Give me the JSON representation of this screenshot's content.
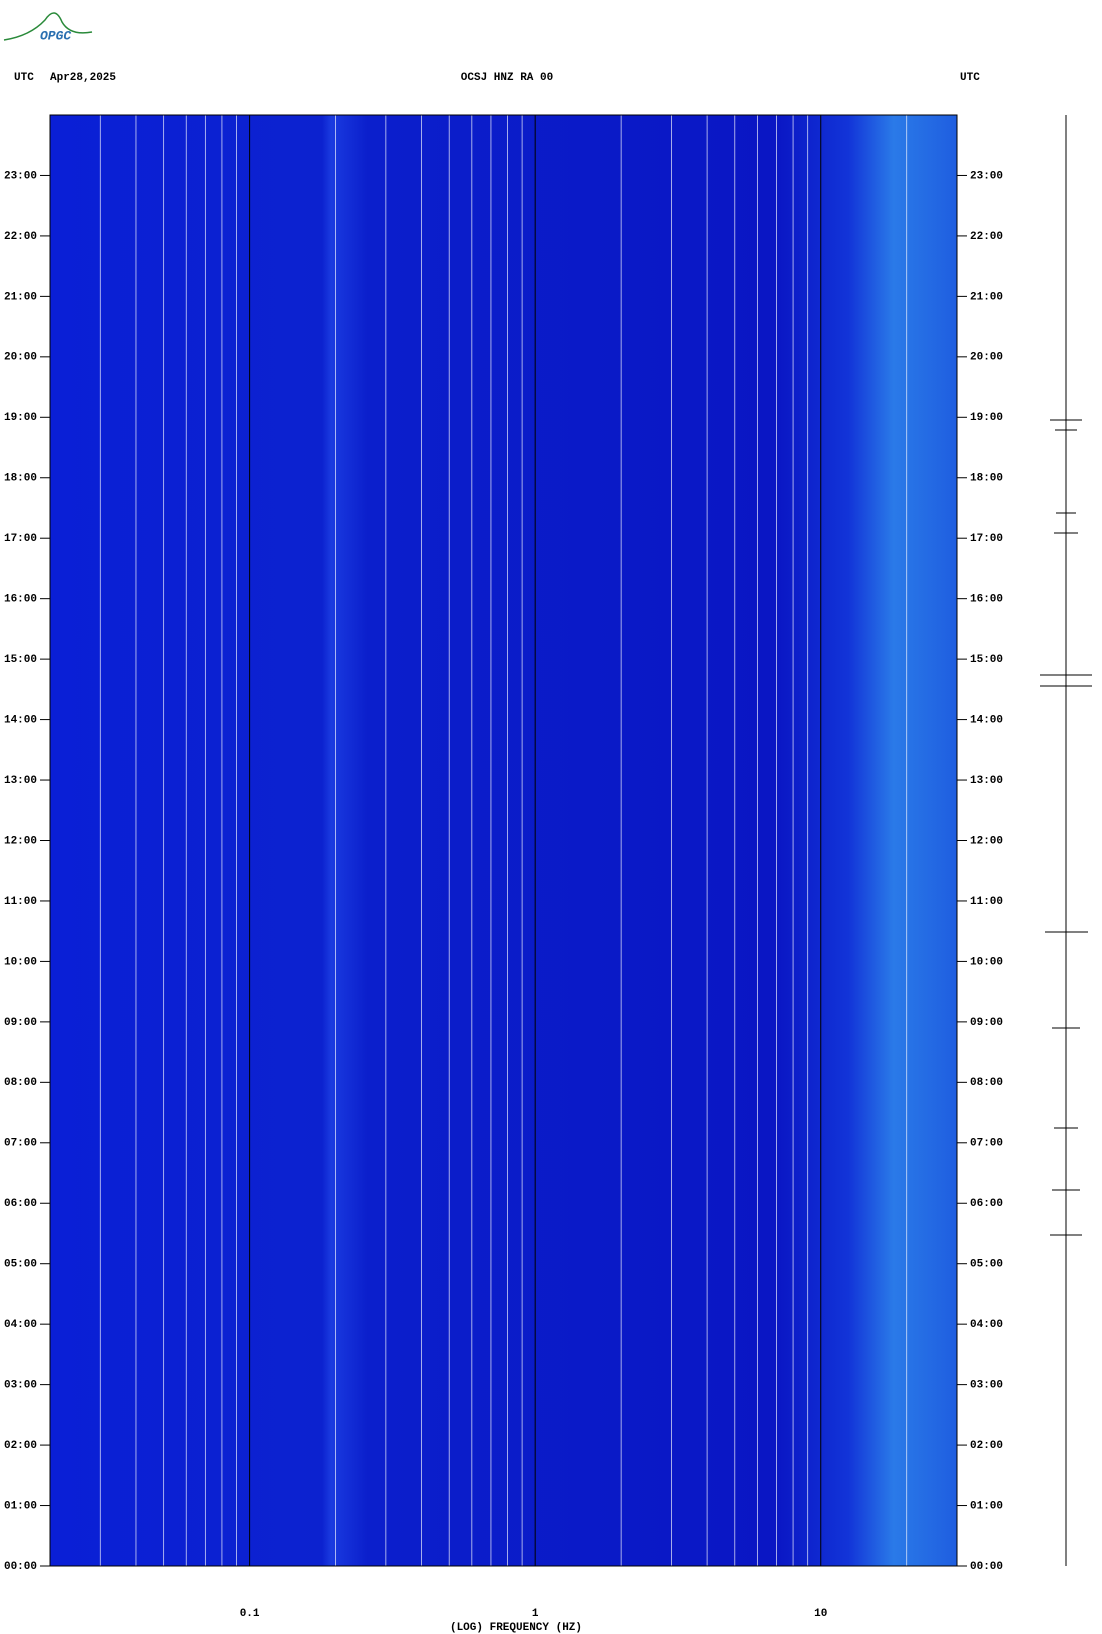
{
  "logo": "OPGC",
  "chart_data": {
    "type": "spectrogram",
    "title": "OCSJ HNZ RA 00",
    "date": "Apr28,2025",
    "left_zone": "UTC",
    "right_zone": "UTC",
    "x_label": "(LOG) FREQUENCY (HZ)",
    "x_log": true,
    "xlim": [
      0.02,
      30
    ],
    "xticks": [
      0.1,
      1,
      10
    ],
    "minor_xticks": [
      0.03,
      0.04,
      0.05,
      0.06,
      0.07,
      0.08,
      0.09,
      0.2,
      0.3,
      0.4,
      0.5,
      0.6,
      0.7,
      0.8,
      0.9,
      2,
      3,
      4,
      5,
      6,
      7,
      8,
      9,
      20
    ],
    "ylim": [
      0,
      24
    ],
    "yticks": [
      {
        "value": 0,
        "label": "00:00"
      },
      {
        "value": 1,
        "label": "01:00"
      },
      {
        "value": 2,
        "label": "02:00"
      },
      {
        "value": 3,
        "label": "03:00"
      },
      {
        "value": 4,
        "label": "04:00"
      },
      {
        "value": 5,
        "label": "05:00"
      },
      {
        "value": 6,
        "label": "06:00"
      },
      {
        "value": 7,
        "label": "07:00"
      },
      {
        "value": 8,
        "label": "08:00"
      },
      {
        "value": 9,
        "label": "09:00"
      },
      {
        "value": 10,
        "label": "10:00"
      },
      {
        "value": 11,
        "label": "11:00"
      },
      {
        "value": 12,
        "label": "12:00"
      },
      {
        "value": 13,
        "label": "13:00"
      },
      {
        "value": 14,
        "label": "14:00"
      },
      {
        "value": 15,
        "label": "15:00"
      },
      {
        "value": 16,
        "label": "16:00"
      },
      {
        "value": 17,
        "label": "17:00"
      },
      {
        "value": 18,
        "label": "18:00"
      },
      {
        "value": 19,
        "label": "19:00"
      },
      {
        "value": 20,
        "label": "20:00"
      },
      {
        "value": 21,
        "label": "21:00"
      },
      {
        "value": 22,
        "label": "22:00"
      },
      {
        "value": 23,
        "label": "23:00"
      }
    ],
    "major_grid_color": "#000000",
    "minor_grid_color": "#ffffff"
  }
}
